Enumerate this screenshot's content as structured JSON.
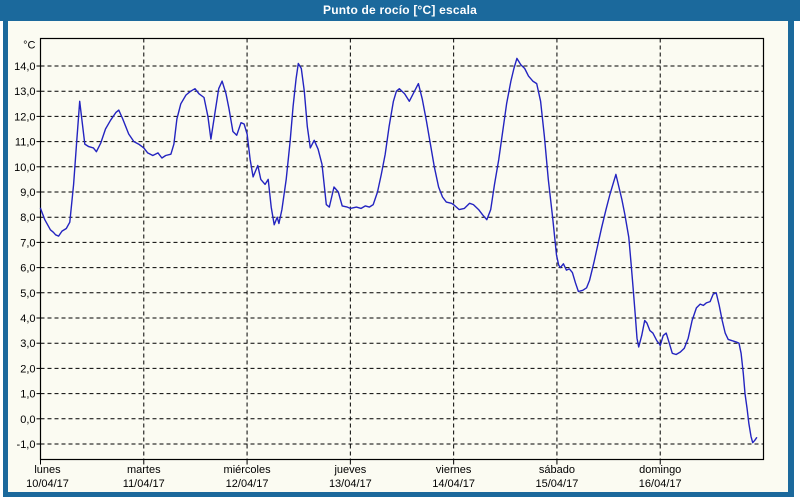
{
  "window": {
    "title": "Punto de rocío [°C] escala"
  },
  "colors": {
    "titlebar": "#1b699c",
    "frame": "#1b699c",
    "background": "#fbfbf2",
    "grid": "#000000",
    "line": "#2424c0"
  },
  "chart_data": {
    "type": "line",
    "title": "Punto de rocío [°C] escala",
    "ylabel": "°C",
    "y_unit_label": "°C",
    "ylim": [
      -1,
      14
    ],
    "y_ticks": [
      14,
      13,
      12,
      11,
      10,
      9,
      8,
      7,
      6,
      5,
      4,
      3,
      2,
      1,
      0,
      -1
    ],
    "y_tick_labels": [
      "14,0",
      "13,0",
      "12,0",
      "11,0",
      "10,0",
      "9,0",
      "8,0",
      "7,0",
      "6,0",
      "5,0",
      "4,0",
      "3,0",
      "2,0",
      "1,0",
      "0,0",
      "-1,0"
    ],
    "x_unit": "hours since Monday 10/04/17 00:00",
    "xlim": [
      0,
      168
    ],
    "grid": "dashed",
    "legend": "none",
    "x_days": [
      {
        "name": "lunes",
        "date": "10/04/17"
      },
      {
        "name": "martes",
        "date": "11/04/17"
      },
      {
        "name": "miércoles",
        "date": "12/04/17"
      },
      {
        "name": "jueves",
        "date": "13/04/17"
      },
      {
        "name": "viernes",
        "date": "14/04/17"
      },
      {
        "name": "sábado",
        "date": "15/04/17"
      },
      {
        "name": "domingo",
        "date": "16/04/17"
      }
    ],
    "series": [
      {
        "name": "Punto de rocío",
        "color": "#2424c0",
        "points": [
          [
            0,
            8.35
          ],
          [
            1,
            7.9
          ],
          [
            2.3,
            7.5
          ],
          [
            3,
            7.4
          ],
          [
            3.5,
            7.3
          ],
          [
            4.2,
            7.25
          ],
          [
            5,
            7.45
          ],
          [
            6,
            7.55
          ],
          [
            6.8,
            7.8
          ],
          [
            7.7,
            9.3
          ],
          [
            8.4,
            11.0
          ],
          [
            9.1,
            12.6
          ],
          [
            9.6,
            11.9
          ],
          [
            10.3,
            10.9
          ],
          [
            11.2,
            10.8
          ],
          [
            12.3,
            10.75
          ],
          [
            13,
            10.6
          ],
          [
            14,
            10.95
          ],
          [
            15.1,
            11.5
          ],
          [
            16.3,
            11.85
          ],
          [
            17.5,
            12.15
          ],
          [
            18.2,
            12.25
          ],
          [
            19.1,
            11.9
          ],
          [
            20.5,
            11.3
          ],
          [
            21.7,
            11.0
          ],
          [
            22.8,
            10.9
          ],
          [
            24,
            10.75
          ],
          [
            24.9,
            10.55
          ],
          [
            26.1,
            10.45
          ],
          [
            27.3,
            10.55
          ],
          [
            28.2,
            10.35
          ],
          [
            29.1,
            10.45
          ],
          [
            30.3,
            10.5
          ],
          [
            31,
            10.9
          ],
          [
            31.7,
            11.9
          ],
          [
            32.6,
            12.5
          ],
          [
            33.8,
            12.85
          ],
          [
            34.9,
            13.0
          ],
          [
            35.9,
            13.1
          ],
          [
            36.8,
            12.9
          ],
          [
            38,
            12.75
          ],
          [
            38.9,
            12.0
          ],
          [
            39.6,
            11.1
          ],
          [
            40.5,
            12.1
          ],
          [
            41.4,
            13.1
          ],
          [
            42.2,
            13.4
          ],
          [
            43.1,
            12.9
          ],
          [
            43.8,
            12.3
          ],
          [
            44.7,
            11.4
          ],
          [
            45.6,
            11.25
          ],
          [
            46.6,
            11.75
          ],
          [
            47.3,
            11.7
          ],
          [
            48,
            11.3
          ],
          [
            48.7,
            10.3
          ],
          [
            49.4,
            9.6
          ],
          [
            50.5,
            10.05
          ],
          [
            51.2,
            9.5
          ],
          [
            52.2,
            9.3
          ],
          [
            52.9,
            9.5
          ],
          [
            53.6,
            8.4
          ],
          [
            54.3,
            7.7
          ],
          [
            55,
            8.0
          ],
          [
            55.4,
            7.75
          ],
          [
            56.1,
            8.3
          ],
          [
            57.1,
            9.5
          ],
          [
            58,
            11.0
          ],
          [
            58.7,
            12.4
          ],
          [
            59.4,
            13.5
          ],
          [
            59.9,
            14.1
          ],
          [
            60.6,
            13.9
          ],
          [
            61.3,
            13.0
          ],
          [
            62,
            11.6
          ],
          [
            62.7,
            10.75
          ],
          [
            63.6,
            11.05
          ],
          [
            64.5,
            10.7
          ],
          [
            65.4,
            10.1
          ],
          [
            66.4,
            8.5
          ],
          [
            67.1,
            8.4
          ],
          [
            68.2,
            9.2
          ],
          [
            69.2,
            9.0
          ],
          [
            70.1,
            8.45
          ],
          [
            71.3,
            8.4
          ],
          [
            72,
            8.35
          ],
          [
            73.4,
            8.4
          ],
          [
            74.5,
            8.35
          ],
          [
            75.5,
            8.45
          ],
          [
            76.4,
            8.4
          ],
          [
            77.3,
            8.5
          ],
          [
            78.3,
            9.0
          ],
          [
            79.2,
            9.7
          ],
          [
            80.1,
            10.5
          ],
          [
            81,
            11.6
          ],
          [
            82,
            12.6
          ],
          [
            82.7,
            13.0
          ],
          [
            83.4,
            13.1
          ],
          [
            84.6,
            12.9
          ],
          [
            85.7,
            12.6
          ],
          [
            86.9,
            13.0
          ],
          [
            87.8,
            13.3
          ],
          [
            88.7,
            12.7
          ],
          [
            89.7,
            11.8
          ],
          [
            90.6,
            10.9
          ],
          [
            91.5,
            10.0
          ],
          [
            92.5,
            9.2
          ],
          [
            93.4,
            8.8
          ],
          [
            94.3,
            8.6
          ],
          [
            95.5,
            8.55
          ],
          [
            96,
            8.5
          ],
          [
            97.3,
            8.3
          ],
          [
            98.5,
            8.35
          ],
          [
            99.7,
            8.55
          ],
          [
            100.6,
            8.5
          ],
          [
            101.8,
            8.3
          ],
          [
            102.7,
            8.1
          ],
          [
            103.7,
            7.9
          ],
          [
            104.6,
            8.3
          ],
          [
            105.5,
            9.3
          ],
          [
            106.5,
            10.3
          ],
          [
            107.4,
            11.4
          ],
          [
            108.3,
            12.5
          ],
          [
            109.3,
            13.4
          ],
          [
            110,
            13.9
          ],
          [
            110.7,
            14.3
          ],
          [
            111.6,
            14.05
          ],
          [
            112.5,
            13.9
          ],
          [
            113.4,
            13.6
          ],
          [
            114.4,
            13.4
          ],
          [
            115.3,
            13.3
          ],
          [
            116.2,
            12.6
          ],
          [
            117.1,
            11.2
          ],
          [
            118,
            9.5
          ],
          [
            119,
            8.0
          ],
          [
            119.9,
            6.5
          ],
          [
            120.4,
            6.1
          ],
          [
            120.8,
            6.0
          ],
          [
            121.5,
            6.15
          ],
          [
            122.2,
            5.9
          ],
          [
            122.9,
            5.95
          ],
          [
            123.6,
            5.8
          ],
          [
            124.3,
            5.4
          ],
          [
            125,
            5.05
          ],
          [
            126,
            5.1
          ],
          [
            126.9,
            5.2
          ],
          [
            127.6,
            5.5
          ],
          [
            128.6,
            6.2
          ],
          [
            129.5,
            6.9
          ],
          [
            130.4,
            7.6
          ],
          [
            131.4,
            8.3
          ],
          [
            132.3,
            8.9
          ],
          [
            133,
            9.3
          ],
          [
            133.7,
            9.7
          ],
          [
            134.4,
            9.2
          ],
          [
            135.1,
            8.7
          ],
          [
            135.8,
            8.1
          ],
          [
            136.7,
            7.2
          ],
          [
            137.2,
            6.2
          ],
          [
            137.7,
            5.2
          ],
          [
            138.2,
            4.1
          ],
          [
            138.6,
            3.2
          ],
          [
            139,
            2.85
          ],
          [
            139.7,
            3.3
          ],
          [
            140.4,
            3.9
          ],
          [
            140.9,
            3.8
          ],
          [
            141.6,
            3.5
          ],
          [
            142.3,
            3.4
          ],
          [
            143.2,
            3.1
          ],
          [
            143.9,
            2.95
          ],
          [
            144,
            2.9
          ],
          [
            144.7,
            3.3
          ],
          [
            145.4,
            3.4
          ],
          [
            146.1,
            3.0
          ],
          [
            146.8,
            2.6
          ],
          [
            147.7,
            2.55
          ],
          [
            148.7,
            2.65
          ],
          [
            149.6,
            2.8
          ],
          [
            150.5,
            3.2
          ],
          [
            151.4,
            3.9
          ],
          [
            152.4,
            4.4
          ],
          [
            153.3,
            4.55
          ],
          [
            154,
            4.5
          ],
          [
            154.7,
            4.6
          ],
          [
            155.6,
            4.65
          ],
          [
            156.3,
            4.95
          ],
          [
            157,
            5.0
          ],
          [
            157.7,
            4.5
          ],
          [
            158.4,
            3.9
          ],
          [
            159.1,
            3.4
          ],
          [
            159.8,
            3.15
          ],
          [
            160.7,
            3.1
          ],
          [
            161.6,
            3.05
          ],
          [
            162.3,
            3.0
          ],
          [
            162.8,
            2.6
          ],
          [
            163.3,
            1.8
          ],
          [
            163.7,
            1.0
          ],
          [
            164.2,
            0.4
          ],
          [
            164.6,
            -0.2
          ],
          [
            165.1,
            -0.7
          ],
          [
            165.5,
            -0.95
          ],
          [
            166,
            -0.85
          ],
          [
            166.4,
            -0.75
          ]
        ]
      }
    ]
  }
}
